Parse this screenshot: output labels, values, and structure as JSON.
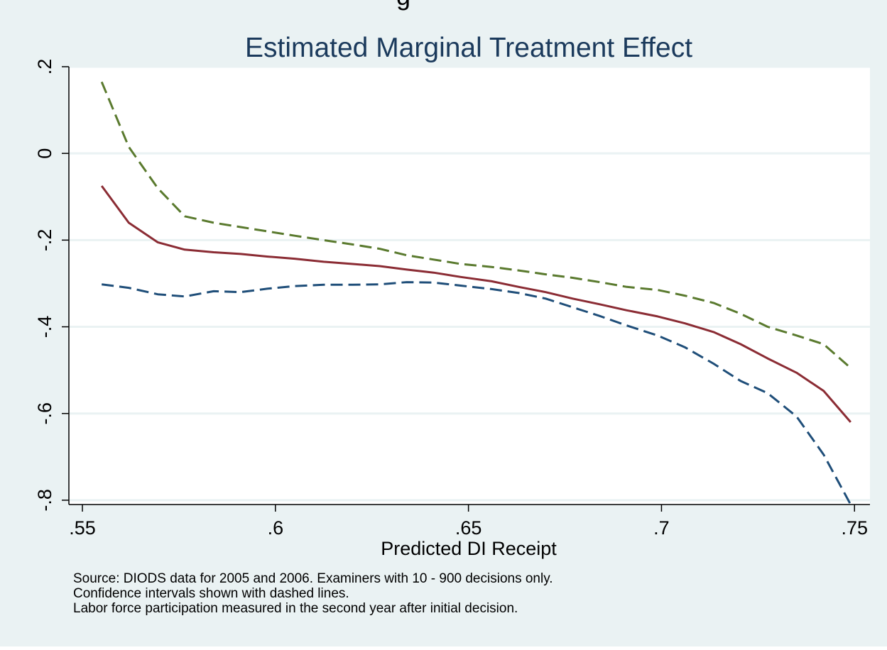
{
  "chart_data": {
    "type": "line",
    "cropped_heading": "g",
    "title": "Estimated Marginal Treatment Effect",
    "xlabel": "Predicted DI Receipt",
    "ylabel": "",
    "xlim": [
      0.5465,
      0.754
    ],
    "ylim": [
      -0.81,
      0.2
    ],
    "x_ticks": [
      0.55,
      0.6,
      0.65,
      0.7,
      0.75
    ],
    "x_tick_labels": [
      ".55",
      ".6",
      ".65",
      ".7",
      ".75"
    ],
    "y_ticks": [
      0.2,
      0,
      -0.2,
      -0.4,
      -0.6,
      -0.8
    ],
    "y_tick_labels": [
      ".2",
      "0",
      "-.2",
      "-.4",
      "-.6",
      "-.8"
    ],
    "grid": true,
    "legend": "none",
    "series": [
      {
        "role": "upper confidence bound",
        "style": "dashed",
        "color": "#5a7a2e",
        "x": [
          0.555,
          0.562,
          0.5695,
          0.5765,
          0.584,
          0.591,
          0.598,
          0.605,
          0.6125,
          0.62,
          0.627,
          0.634,
          0.641,
          0.648,
          0.656,
          0.663,
          0.67,
          0.677,
          0.684,
          0.691,
          0.699,
          0.706,
          0.7135,
          0.7205,
          0.7275,
          0.735,
          0.742,
          0.749
        ],
        "y": [
          0.165,
          0.015,
          -0.08,
          -0.145,
          -0.16,
          -0.17,
          -0.18,
          -0.19,
          -0.2,
          -0.21,
          -0.22,
          -0.235,
          -0.245,
          -0.255,
          -0.262,
          -0.27,
          -0.279,
          -0.287,
          -0.297,
          -0.308,
          -0.315,
          -0.328,
          -0.345,
          -0.37,
          -0.4,
          -0.42,
          -0.44,
          -0.495
        ]
      },
      {
        "role": "estimate",
        "style": "solid",
        "color": "#8b2c34",
        "x": [
          0.555,
          0.562,
          0.5695,
          0.5765,
          0.584,
          0.591,
          0.598,
          0.605,
          0.6125,
          0.62,
          0.627,
          0.634,
          0.641,
          0.648,
          0.656,
          0.663,
          0.67,
          0.677,
          0.684,
          0.691,
          0.699,
          0.706,
          0.7135,
          0.7205,
          0.7275,
          0.735,
          0.742,
          0.749
        ],
        "y": [
          -0.075,
          -0.16,
          -0.205,
          -0.222,
          -0.228,
          -0.232,
          -0.238,
          -0.243,
          -0.25,
          -0.255,
          -0.26,
          -0.268,
          -0.275,
          -0.285,
          -0.295,
          -0.308,
          -0.32,
          -0.335,
          -0.348,
          -0.362,
          -0.376,
          -0.392,
          -0.412,
          -0.44,
          -0.473,
          -0.506,
          -0.548,
          -0.62
        ]
      },
      {
        "role": "lower confidence bound",
        "style": "dashed",
        "color": "#1f4e79",
        "x": [
          0.555,
          0.562,
          0.5695,
          0.5765,
          0.584,
          0.591,
          0.598,
          0.605,
          0.6125,
          0.62,
          0.627,
          0.634,
          0.641,
          0.648,
          0.656,
          0.663,
          0.67,
          0.677,
          0.684,
          0.691,
          0.699,
          0.706,
          0.7135,
          0.7205,
          0.7275,
          0.735,
          0.742,
          0.749
        ],
        "y": [
          -0.302,
          -0.31,
          -0.325,
          -0.33,
          -0.318,
          -0.32,
          -0.312,
          -0.306,
          -0.303,
          -0.303,
          -0.302,
          -0.297,
          -0.298,
          -0.305,
          -0.313,
          -0.322,
          -0.335,
          -0.355,
          -0.375,
          -0.397,
          -0.42,
          -0.447,
          -0.485,
          -0.525,
          -0.553,
          -0.607,
          -0.695,
          -0.81
        ]
      }
    ],
    "notes": [
      "Source: DIODS data for 2005 and 2006. Examiners with 10 - 900 decisions only.",
      "Confidence intervals shown with dashed lines.",
      "Labor force participation measured in the second year after initial decision."
    ]
  },
  "style": {
    "outer_background": "#eaf2f3",
    "plot_background": "#ffffff",
    "grid_color": "#eaf2f3",
    "title_color": "#1b3a5c",
    "axis_color": "#000000"
  }
}
